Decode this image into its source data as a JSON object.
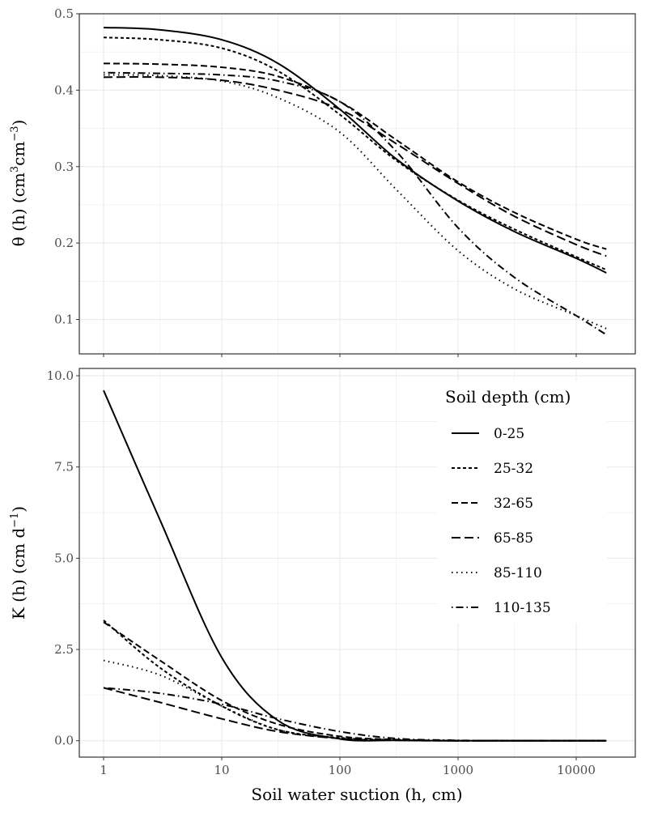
{
  "chart_data": [
    {
      "type": "line",
      "panel": "top",
      "ylabel": "θ (h) (cm³cm⁻³)",
      "ylabel_parts": {
        "a": "θ (h) (cm",
        "b": "3",
        "c": "cm",
        "d": "−3",
        "e": ")"
      },
      "xscale": "log",
      "xlim": [
        0.8,
        25000
      ],
      "ylim": [
        0.055,
        0.5
      ],
      "yticks": [
        0.1,
        0.2,
        0.3,
        0.4,
        0.5
      ],
      "ytick_labels": [
        "0.1",
        "0.2",
        "0.3",
        "0.4",
        "0.5"
      ],
      "x": [
        1,
        3,
        10,
        30,
        100,
        300,
        1000,
        3000,
        10000,
        18000
      ],
      "series": [
        {
          "name": "0-25",
          "values": [
            0.482,
            0.479,
            0.466,
            0.435,
            0.375,
            0.31,
            0.255,
            0.215,
            0.18,
            0.161
          ]
        },
        {
          "name": "25-32",
          "values": [
            0.469,
            0.466,
            0.455,
            0.425,
            0.368,
            0.308,
            0.256,
            0.218,
            0.182,
            0.165
          ]
        },
        {
          "name": "32-65",
          "values": [
            0.435,
            0.434,
            0.43,
            0.418,
            0.385,
            0.335,
            0.28,
            0.24,
            0.205,
            0.192
          ]
        },
        {
          "name": "65-85",
          "values": [
            0.417,
            0.417,
            0.413,
            0.4,
            0.375,
            0.33,
            0.278,
            0.235,
            0.198,
            0.183
          ]
        },
        {
          "name": "85-110",
          "values": [
            0.42,
            0.419,
            0.412,
            0.39,
            0.345,
            0.27,
            0.19,
            0.14,
            0.105,
            0.088
          ]
        },
        {
          "name": "110-135",
          "values": [
            0.423,
            0.422,
            0.42,
            0.412,
            0.385,
            0.32,
            0.22,
            0.155,
            0.105,
            0.08
          ]
        }
      ]
    },
    {
      "type": "line",
      "panel": "bottom",
      "xlabel": "Soil water suction (h, cm)",
      "ylabel_parts": {
        "a": "K (h) (cm d",
        "b": "−1",
        "c": ")"
      },
      "xscale": "log",
      "xlim": [
        0.8,
        25000
      ],
      "xticks": [
        1,
        10,
        100,
        1000,
        10000
      ],
      "xtick_labels": [
        "1",
        "10",
        "100",
        "1000",
        "10000"
      ],
      "ylim": [
        -0.45,
        10.2
      ],
      "yticks": [
        0,
        2.5,
        5,
        7.5,
        10
      ],
      "ytick_labels": [
        "0.0",
        "2.5",
        "5.0",
        "7.5",
        "10.0"
      ],
      "x": [
        1,
        3,
        10,
        30,
        100,
        300,
        1000,
        3000,
        10000,
        18000
      ],
      "series": [
        {
          "name": "0-25",
          "values": [
            9.6,
            6.05,
            2.28,
            0.55,
            0.05,
            0.01,
            0,
            0,
            0,
            0
          ]
        },
        {
          "name": "25-32",
          "values": [
            3.3,
            2.0,
            0.95,
            0.3,
            0.08,
            0.02,
            0,
            0,
            0,
            0
          ]
        },
        {
          "name": "32-65",
          "values": [
            3.25,
            2.2,
            1.1,
            0.45,
            0.12,
            0.03,
            0,
            0,
            0,
            0
          ]
        },
        {
          "name": "65-85",
          "values": [
            1.45,
            1.05,
            0.6,
            0.25,
            0.06,
            0.01,
            0,
            0,
            0,
            0
          ]
        },
        {
          "name": "85-110",
          "values": [
            2.2,
            1.8,
            0.95,
            0.3,
            0.06,
            0.01,
            0,
            0,
            0,
            0
          ]
        },
        {
          "name": "110-135",
          "values": [
            1.45,
            1.3,
            1.0,
            0.6,
            0.25,
            0.06,
            0.01,
            0,
            0,
            0
          ]
        }
      ],
      "legend": {
        "title": "Soil depth (cm)",
        "placement": "top-right",
        "entries": [
          "0-25",
          "25-32",
          "32-65",
          "65-85",
          "85-110",
          "110-135"
        ]
      }
    }
  ]
}
